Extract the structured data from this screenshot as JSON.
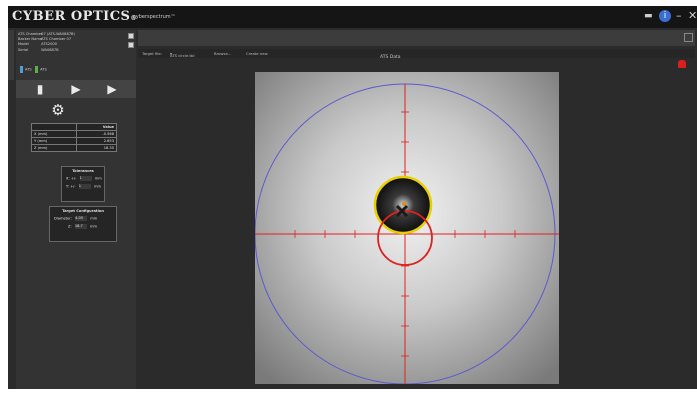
{
  "app": {
    "brand": "CYBER OPTICS",
    "brand_mark": "®",
    "product": "cyberspectrum™"
  },
  "window_controls": {
    "message_icon": "message-icon",
    "info_icon": "info-icon",
    "minimize": "–",
    "close": "✕",
    "info_glyph": "i"
  },
  "device_info": {
    "rows": [
      {
        "label": "ATS Chamber",
        "value": "07 (ATS-WA0887B)"
      },
      {
        "label": "Backer Name",
        "value": "ATS Chamber 07"
      },
      {
        "label": "Model",
        "value": "ATS2000"
      },
      {
        "label": "Serial",
        "value": "WA0887B"
      }
    ],
    "badges": [
      {
        "label": "ATS"
      },
      {
        "label": "ATS"
      }
    ]
  },
  "tools": {
    "file_icon": "file-icon",
    "run_icon": "play-step-icon",
    "run_all_icon": "play-cycle-icon",
    "settings_icon": "gear-icon"
  },
  "values_table": {
    "header": "Value",
    "rows": [
      {
        "label": "X (mm)",
        "value": "-0.568"
      },
      {
        "label": "Y (mm)",
        "value": "2.853"
      },
      {
        "label": "Z (mm)",
        "value": "18.35"
      }
    ]
  },
  "tolerances": {
    "title": "Tolerances",
    "rows": [
      {
        "axis": "X:",
        "sign": "+/-",
        "value": "1",
        "unit": "mm"
      },
      {
        "axis": "Y:",
        "sign": "+/-",
        "value": "1",
        "unit": "mm"
      }
    ]
  },
  "target_config": {
    "title": "Target Configuration",
    "rows": [
      {
        "label": "Diameter:",
        "value": "4.05",
        "unit": "mm"
      },
      {
        "label": "Z:",
        "value": "18.7",
        "unit": "mm"
      }
    ]
  },
  "strip": {
    "target_label": "Target file:",
    "target_value": "ATS circle.tbl",
    "browse": "Browse...",
    "create": "Create new"
  },
  "image": {
    "title": "ATS Data"
  },
  "colors": {
    "background": "#2b2b2b",
    "crosshair": "#e02020",
    "target_ring": "#e8d000",
    "fov_circle": "#5a5ad0",
    "alarm": "#d82020"
  }
}
